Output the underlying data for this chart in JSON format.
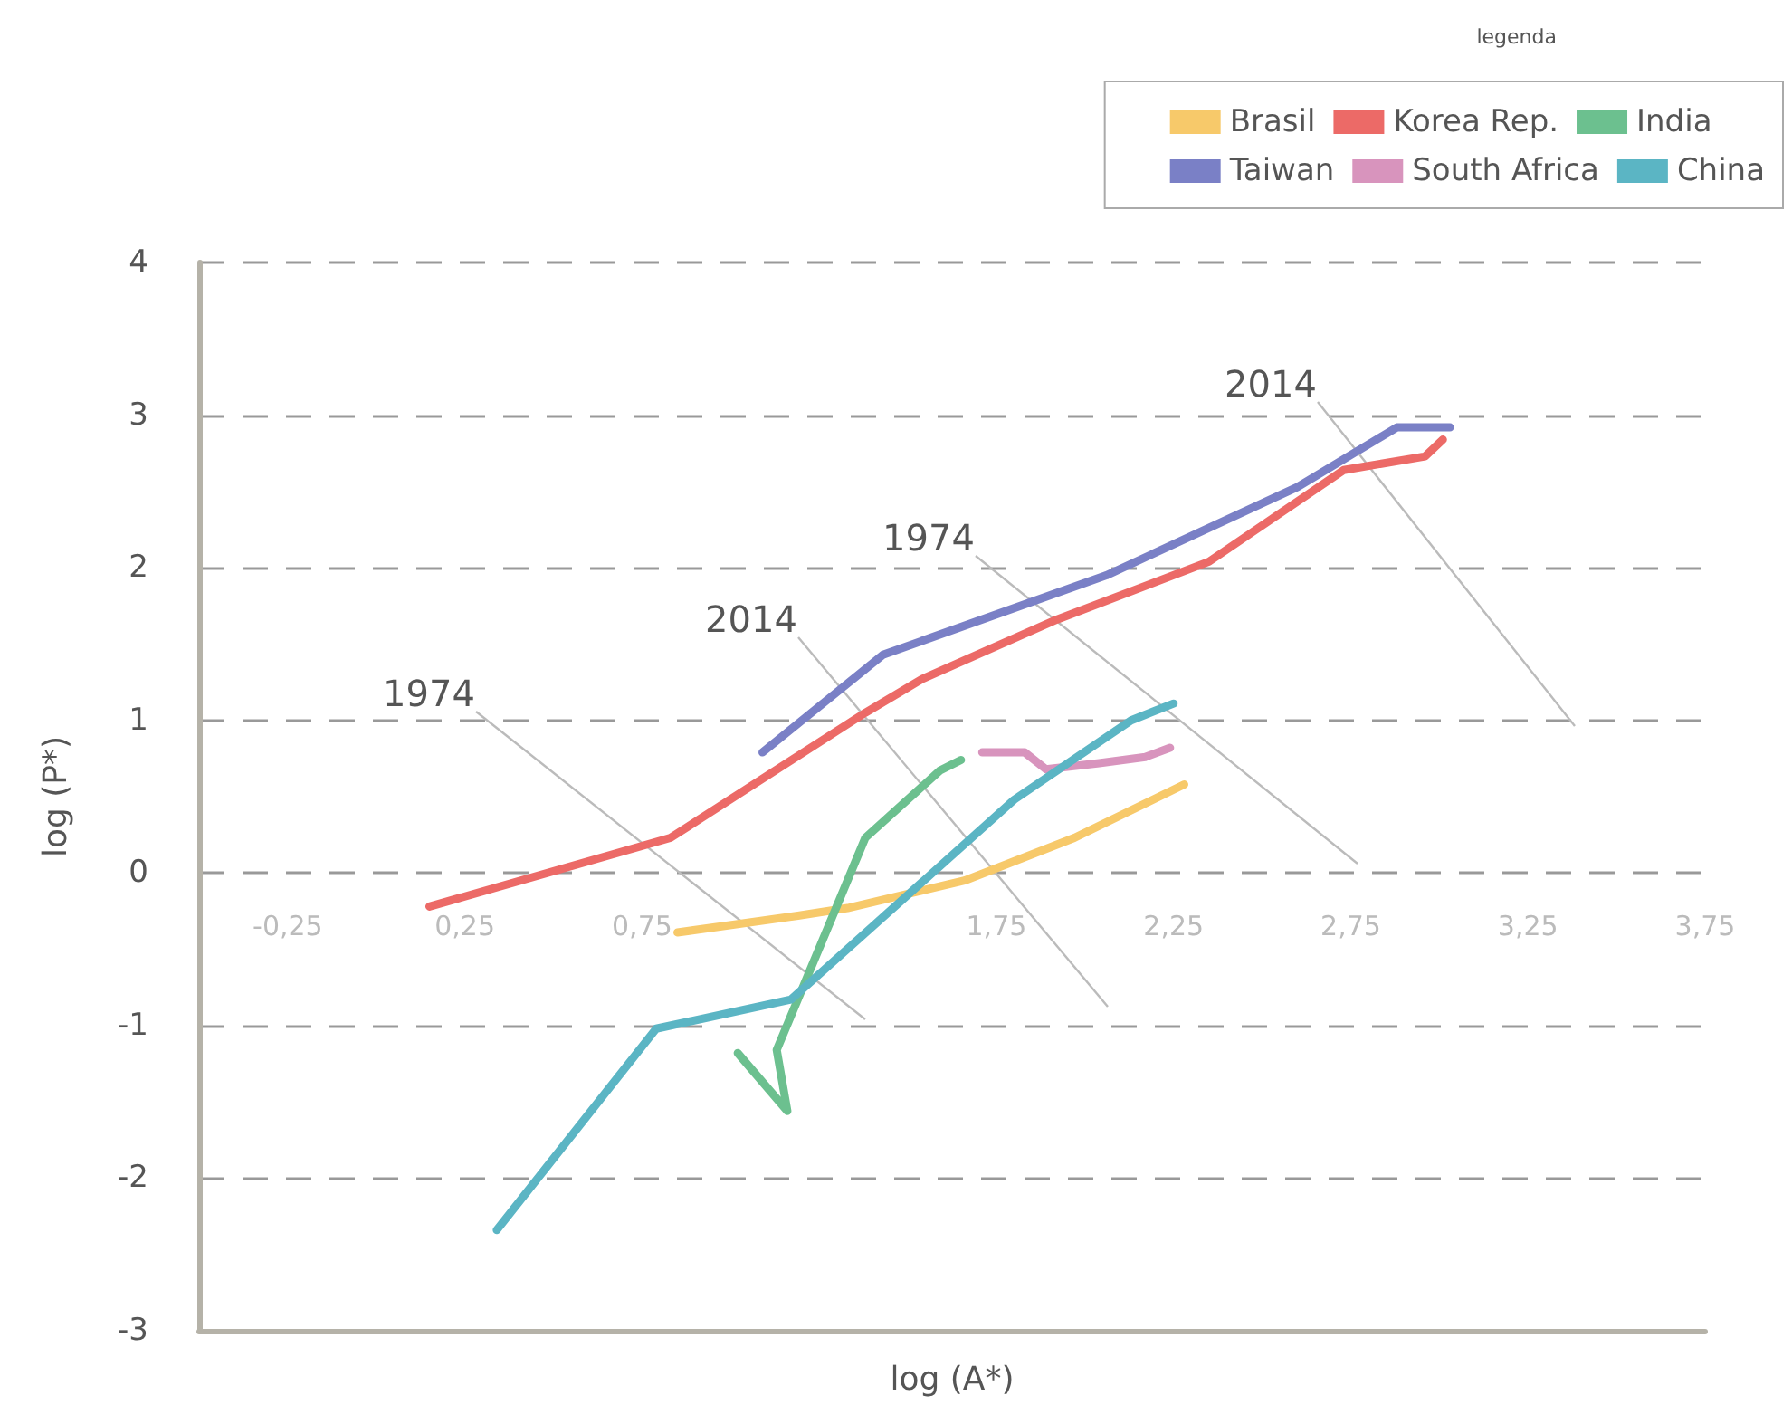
{
  "chart_data": {
    "type": "line",
    "xlabel": "log (A*)",
    "ylabel": "log (P*)",
    "legend_title": "legenda",
    "legend": "top right",
    "grid": "y",
    "marker": "none",
    "line_style": "solid",
    "xlim": [
      -0.5,
      3.75
    ],
    "ylim": [
      -3,
      4
    ],
    "xticks": [
      {
        "value": -0.25,
        "label": "-0,25"
      },
      {
        "value": 0.25,
        "label": "0,25"
      },
      {
        "value": 0.75,
        "label": "0,75"
      },
      {
        "value": 1.75,
        "label": "1,75"
      },
      {
        "value": 2.25,
        "label": "2,25"
      },
      {
        "value": 2.75,
        "label": "2,75"
      },
      {
        "value": 3.25,
        "label": "3,25"
      },
      {
        "value": 3.75,
        "label": "3,75"
      }
    ],
    "yticks": [
      -3,
      -2,
      -1,
      0,
      1,
      2,
      3,
      4
    ],
    "series": [
      {
        "name": "Brasil",
        "color": "#f7c96a",
        "x": [
          0.85,
          1.19,
          1.33,
          1.66,
          1.97,
          2.28
        ],
        "values": [
          -0.39,
          -0.28,
          -0.23,
          -0.05,
          0.23,
          0.58
        ]
      },
      {
        "name": "India",
        "color": "#6cc08f",
        "x": [
          1.02,
          1.16,
          1.13,
          1.38,
          1.59,
          1.65
        ],
        "values": [
          -1.18,
          -1.56,
          -1.16,
          0.23,
          0.67,
          0.74
        ]
      },
      {
        "name": "South Africa",
        "color": "#d894bd",
        "x": [
          1.71,
          1.83,
          1.89,
          2.04,
          2.17,
          2.24
        ],
        "values": [
          0.79,
          0.79,
          0.68,
          0.72,
          0.76,
          0.82
        ]
      },
      {
        "name": "Korea Rep.",
        "color": "#ec6a67",
        "x": [
          0.15,
          0.83,
          1.38,
          1.54,
          1.92,
          2.35,
          2.73,
          2.96,
          3.01
        ],
        "values": [
          -0.22,
          0.23,
          1.05,
          1.27,
          1.66,
          2.04,
          2.64,
          2.73,
          2.84
        ]
      },
      {
        "name": "Taiwan",
        "color": "#7a80c6",
        "x": [
          1.09,
          1.43,
          2.06,
          2.6,
          2.88,
          3.03
        ],
        "values": [
          0.79,
          1.43,
          1.95,
          2.53,
          2.92,
          2.92
        ]
      },
      {
        "name": "China",
        "color": "#5bb5c4",
        "x": [
          0.34,
          0.79,
          1.17,
          1.8,
          2.13,
          2.25
        ],
        "values": [
          -2.34,
          -1.02,
          -0.83,
          0.48,
          1.0,
          1.11
        ]
      }
    ],
    "annotations": [
      "1974",
      "2014",
      "1974",
      "2014"
    ]
  }
}
